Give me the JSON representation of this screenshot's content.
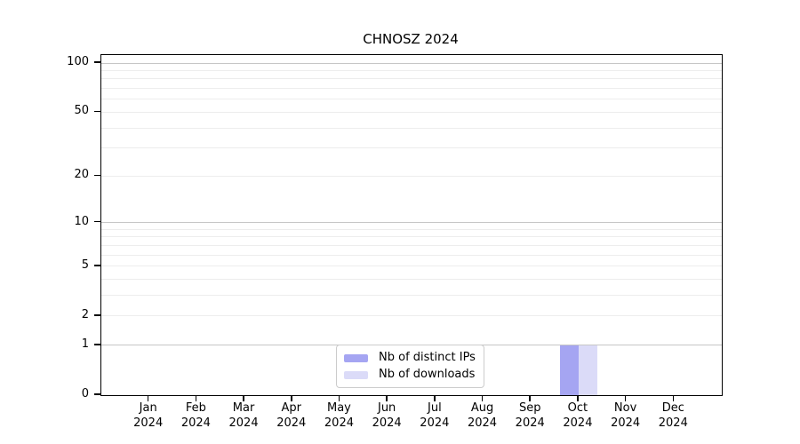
{
  "title": "CHNOSZ 2024",
  "chart_data": {
    "type": "bar",
    "title": "CHNOSZ 2024",
    "categories": [
      "Jan",
      "Feb",
      "Mar",
      "Apr",
      "May",
      "Jun",
      "Jul",
      "Aug",
      "Sep",
      "Oct",
      "Nov",
      "Dec"
    ],
    "x_tick_year": "2024",
    "series": [
      {
        "name": "Nb of distinct IPs",
        "color": "#a5a5f2",
        "values": [
          0,
          0,
          0,
          0,
          0,
          0,
          0,
          0,
          0,
          1,
          0,
          0
        ]
      },
      {
        "name": "Nb of downloads",
        "color": "#dbdbf8",
        "values": [
          0,
          0,
          0,
          0,
          0,
          0,
          0,
          0,
          0,
          1,
          0,
          0
        ]
      }
    ],
    "yticks": [
      0,
      1,
      2,
      5,
      10,
      20,
      50,
      100
    ],
    "gridlines": {
      "major": [
        1,
        10,
        100
      ],
      "minor": [
        2,
        3,
        4,
        5,
        6,
        7,
        8,
        9,
        20,
        30,
        40,
        50,
        60,
        70,
        80,
        90
      ]
    },
    "scale": "log1p",
    "ylim": [
      0,
      112
    ],
    "grid": true,
    "legend_position": "bottom-center",
    "colors": {
      "grid_major": "#c6c6c6",
      "grid_minor": "#ededed",
      "axis": "#000000",
      "legend_border": "#cccccc",
      "background": "#ffffff"
    }
  }
}
